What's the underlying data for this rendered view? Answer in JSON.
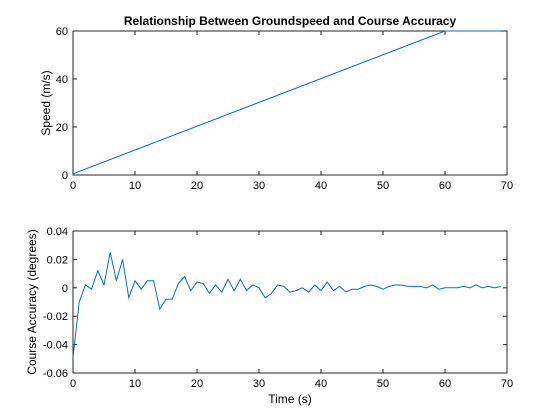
{
  "chart_data": [
    {
      "type": "line",
      "title": "Relationship Between Groundspeed and Course Accuracy",
      "xlabel": "",
      "ylabel": "Speed (m/s)",
      "xlim": [
        0,
        70
      ],
      "ylim": [
        0,
        60
      ],
      "xticks": [
        "0",
        "10",
        "20",
        "30",
        "40",
        "50",
        "60",
        "70"
      ],
      "yticks": [
        "0",
        "20",
        "40",
        "60"
      ],
      "grid": false,
      "series_color": "#0072bd",
      "x": [
        0,
        60,
        69
      ],
      "y": [
        0.5,
        60,
        60
      ]
    },
    {
      "type": "line",
      "title": "",
      "xlabel": "Time (s)",
      "ylabel": "Course Accuracy (degrees)",
      "xlim": [
        0,
        70
      ],
      "ylim": [
        -0.06,
        0.04
      ],
      "xticks": [
        "0",
        "10",
        "20",
        "30",
        "40",
        "50",
        "60",
        "70"
      ],
      "yticks": [
        "-0.06",
        "-0.04",
        "-0.02",
        "0",
        "0.02",
        "0.04"
      ],
      "grid": false,
      "series_color": "#0072bd",
      "x": [
        0,
        1,
        2,
        3,
        4,
        5,
        6,
        7,
        8,
        9,
        10,
        11,
        12,
        13,
        14,
        15,
        16,
        17,
        18,
        19,
        20,
        21,
        22,
        23,
        24,
        25,
        26,
        27,
        28,
        29,
        30,
        31,
        32,
        33,
        34,
        35,
        36,
        37,
        38,
        39,
        40,
        41,
        42,
        43,
        44,
        45,
        46,
        47,
        48,
        49,
        50,
        51,
        52,
        53,
        54,
        55,
        56,
        57,
        58,
        59,
        60,
        61,
        62,
        63,
        64,
        65,
        66,
        67,
        68,
        69
      ],
      "y": [
        -0.049,
        -0.01,
        0.002,
        -0.001,
        0.012,
        0.002,
        0.025,
        0.005,
        0.02,
        -0.007,
        0.005,
        -0.001,
        0.005,
        0.005,
        -0.015,
        -0.008,
        -0.008,
        0.003,
        0.008,
        -0.002,
        0.004,
        0.003,
        -0.004,
        0.002,
        -0.003,
        0.006,
        -0.002,
        0.006,
        -0.002,
        0.002,
        0.0,
        -0.007,
        -0.004,
        0.002,
        0.001,
        -0.003,
        -0.002,
        0.0,
        -0.003,
        0.002,
        -0.002,
        0.004,
        -0.002,
        0.001,
        -0.003,
        -0.001,
        -0.001,
        0.001,
        0.002,
        0.001,
        -0.001,
        0.001,
        0.002,
        0.002,
        0.001,
        0.001,
        0.001,
        0.0,
        0.002,
        -0.001,
        0.0,
        0.0,
        0.0,
        0.001,
        0.0,
        0.002,
        0.0,
        0.001,
        0.0,
        0.001
      ]
    }
  ]
}
